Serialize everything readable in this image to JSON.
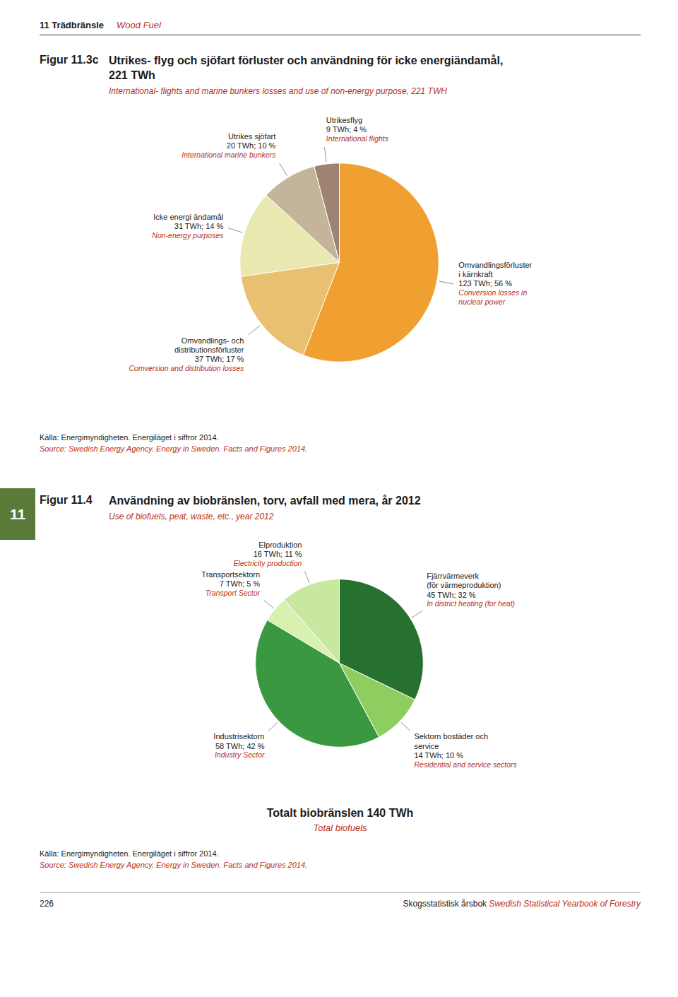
{
  "page_header": "11 Trädbränsle",
  "page_header_en": "Wood Fuel",
  "section_number": "11",
  "section_color": "#5a7a3a",
  "footer_page": "226",
  "footer_title": "Skogsstatistisk årsbok",
  "footer_title_en": "Swedish Statistical Yearbook of Forestry",
  "chart_data": [
    {
      "type": "pie",
      "figure_label": "Figur 11.3c",
      "title": "Utrikes- flyg och sjöfart förluster och användning för icke energiändamål,\n221 TWh",
      "subtitle": "International- flights and marine bunkers losses and use of non-energy purpose, 221 TWH",
      "categories": [
        "Utrikesflyg",
        "Utrikes sjöfart",
        "Icke energi ändamål",
        "Omvandlings- och\ndistributionsförluster",
        "Omvandlingsförluster\ni kärnkraft"
      ],
      "categories_en": [
        "International flights",
        "International marine bunkers",
        "Non-energy purposes",
        "Comversion and distribution losses",
        "Conversion losses in\nnuclear power"
      ],
      "values": [
        9,
        20,
        31,
        37,
        123
      ],
      "value_labels": [
        "9 TWh; 4 %",
        "20 TWh; 10 %",
        "31 TWh; 14 %",
        "37 TWh; 17 %",
        "123 TWh; 56 %"
      ],
      "colors": [
        "#9e8272",
        "#c4b49a",
        "#e8e8b0",
        "#e8c070",
        "#f0a030"
      ],
      "data_labels": true,
      "source": "Källa: Energimyndigheten. Energiläget i siffror 2014.",
      "source_en": "Source: Swedish Energy Agency. Energy in Sweden. Facts and Figures 2014."
    },
    {
      "type": "pie",
      "figure_label": "Figur 11.4",
      "title": "Användning av biobränslen, torv, avfall med mera, år 2012",
      "subtitle": "Use of biofuels, peat, waste, etc., year 2012",
      "categories": [
        "Elproduktion",
        "Transportsektorn",
        "Industrisektorn",
        "Sektorn bostäder och\nservice",
        "Fjärrvärmeverk\n(för värmeproduktion)"
      ],
      "categories_en": [
        "Electricity production",
        "Transport Sector",
        "Industry Sector",
        "Residential and service sectors",
        "In district heating (for heat)"
      ],
      "values": [
        16,
        7,
        58,
        14,
        45
      ],
      "value_labels": [
        "16 TWh; 11 %",
        "7 TWh; 5 %",
        "58 TWh; 42 %",
        "14 TWh; 10 %",
        "45 TWh; 32 %"
      ],
      "colors": [
        "#c8e8a0",
        "#d8f0b0",
        "#3a9940",
        "#8ece60",
        "#267030"
      ],
      "data_labels": true,
      "annotation": "Totalt biobränslen 140 TWh",
      "annotation_en": "Total biofuels",
      "source": "Källa: Energimyndigheten. Energiläget i siffror 2014.",
      "source_en": "Source: Swedish Energy Agency. Energy in Sweden. Facts and Figures 2014."
    }
  ]
}
